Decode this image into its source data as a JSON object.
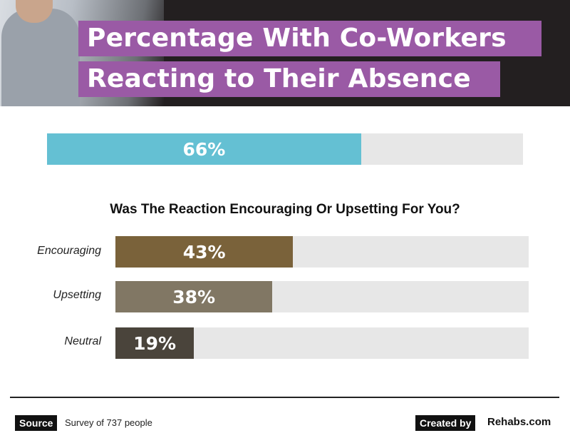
{
  "header": {
    "title_line_1": "Percentage With Co-Workers",
    "title_line_2": "Reacting to Their Absence"
  },
  "question": "Was The Reaction Encouraging Or Upsetting For You?",
  "footer": {
    "source_tag": "Source",
    "source_text": "Survey of 737 people",
    "created_tag": "Created by",
    "created_brand": "Rehabs.com"
  },
  "chart_data": [
    {
      "type": "bar",
      "title": "Percentage With Co-Workers Reacting to Their Absence",
      "categories": [
        ""
      ],
      "values": [
        66
      ],
      "labels": [
        "66%"
      ],
      "colors": [
        "#64c0d3"
      ],
      "ylim": [
        0,
        100
      ]
    },
    {
      "type": "bar",
      "title": "Was The Reaction Encouraging Or Upsetting For You?",
      "categories": [
        "Encouraging",
        "Upsetting",
        "Neutral"
      ],
      "values": [
        43,
        38,
        19
      ],
      "labels": [
        "43%",
        "38%",
        "19%"
      ],
      "colors": [
        "#7a623a",
        "#817764",
        "#4a443b"
      ],
      "ylim": [
        0,
        100
      ]
    }
  ]
}
